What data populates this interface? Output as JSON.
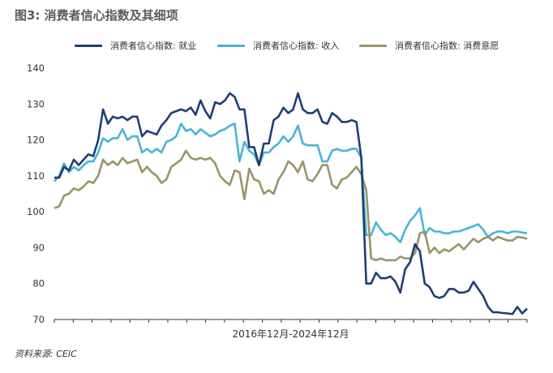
{
  "title": "图3: 消费者信心指数及其细项",
  "source": "资料来源: CEIC",
  "chart_data": {
    "type": "line",
    "xlabel": "2016年12月-2024年12月",
    "ylabel": "",
    "ylim": [
      70,
      140
    ],
    "yticks": [
      70,
      80,
      90,
      100,
      110,
      120,
      130,
      140
    ],
    "grid": false,
    "legend_placement": "top-center",
    "series": [
      {
        "name": "消费者信心指数: 就业",
        "color": "#1f3f73",
        "values": [
          109.5,
          109.5,
          112.5,
          111.5,
          114.5,
          113,
          114.5,
          116,
          115.5,
          120,
          128.5,
          124.5,
          126.5,
          126,
          126.5,
          125.5,
          126.5,
          126.5,
          121,
          122.5,
          122,
          121.5,
          124,
          125.5,
          127.5,
          128,
          128.5,
          128,
          129,
          127,
          131,
          128,
          126,
          130.5,
          130,
          131,
          133,
          132,
          128.5,
          128.5,
          118,
          118,
          113,
          119,
          119,
          125.5,
          126.5,
          129,
          127.5,
          128.5,
          133,
          128.5,
          127.5,
          127.5,
          128.5,
          125,
          124.5,
          127.5,
          126.5,
          125,
          125,
          125.5,
          125,
          115,
          80,
          80,
          83,
          81.5,
          81.5,
          82,
          80.5,
          77.5,
          84,
          86,
          91,
          89,
          80,
          79,
          76.5,
          76,
          76.5,
          78.5,
          78.5,
          77.5,
          77.5,
          78,
          80.5,
          78.5,
          76.5,
          73.5,
          72,
          72,
          71.8,
          71.7,
          71.5,
          73.5,
          71.7,
          73
        ]
      },
      {
        "name": "消费者信心指数: 收入",
        "color": "#4bb3d6",
        "values": [
          108.5,
          110,
          113.5,
          111,
          112.5,
          111.5,
          113,
          114,
          114,
          116.5,
          120.5,
          119.5,
          120.5,
          120.5,
          123,
          120,
          121,
          121,
          116.5,
          117.5,
          116.5,
          117.5,
          116.5,
          119.5,
          120,
          121,
          124.5,
          122.5,
          123,
          121.5,
          123,
          122,
          121,
          121.5,
          122.5,
          123,
          124,
          124.5,
          114,
          119.5,
          117,
          116,
          113,
          116.5,
          116.5,
          118,
          119,
          121,
          119.5,
          121,
          124,
          119,
          118.5,
          118.5,
          118.5,
          114,
          114,
          117,
          117.5,
          117,
          117,
          117.5,
          117.5,
          115,
          93.5,
          93.5,
          97,
          95,
          93.5,
          94,
          93,
          91.5,
          95,
          97.5,
          99,
          101,
          93.5,
          95.5,
          94.5,
          94.5,
          94,
          94,
          94.5,
          94.5,
          95,
          95.5,
          96,
          96.5,
          95,
          93,
          94,
          94.5,
          94.5,
          94,
          94.5,
          94.5,
          94.2,
          94
        ]
      },
      {
        "name": "消费者信心指数: 消费意愿",
        "color": "#9a9467",
        "values": [
          101,
          101.5,
          104.5,
          105,
          106.5,
          106,
          107,
          108.5,
          108,
          110,
          114.5,
          113,
          114,
          113,
          115,
          113.5,
          114,
          114.5,
          111,
          112.5,
          111,
          110,
          108,
          109,
          112.5,
          113.5,
          114.5,
          117,
          115,
          114.5,
          115,
          114.5,
          115,
          113.5,
          110,
          108.5,
          107.5,
          111.5,
          111,
          103.5,
          112,
          109,
          108.5,
          105,
          106,
          105,
          109,
          111,
          114,
          113,
          111,
          114,
          109,
          108.5,
          110.5,
          113,
          113,
          107.5,
          106.5,
          109,
          109.5,
          111,
          112.5,
          110.5,
          106,
          87,
          86.5,
          87,
          86.5,
          86.5,
          86.5,
          87.5,
          87,
          87,
          88.5,
          94,
          94.5,
          88.5,
          90,
          88.5,
          89.5,
          89,
          90,
          91,
          89.5,
          91,
          92.5,
          91.5,
          92.5,
          93,
          92,
          93,
          92.5,
          92,
          92,
          93,
          92.8,
          92.5
        ]
      }
    ]
  }
}
